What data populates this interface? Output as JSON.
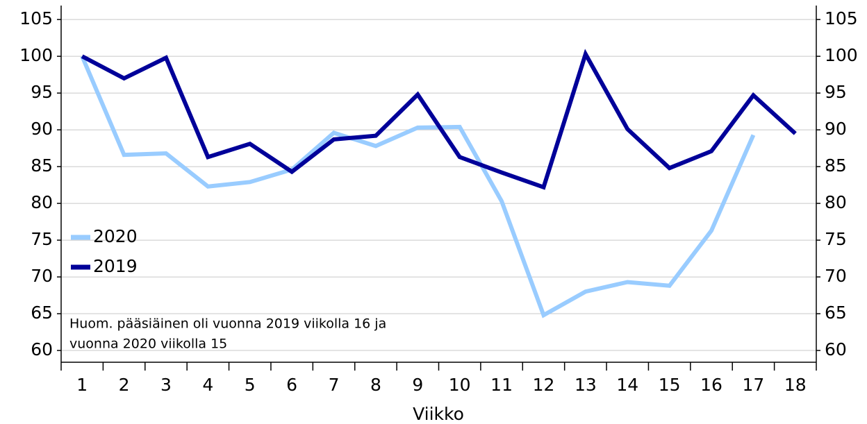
{
  "chart_data": {
    "type": "line",
    "x_label": "Viikko",
    "annotation": [
      "Huom. pääsiäinen oli vuonna 2019 viikolla 16 ja",
      "vuonna 2020 viikolla 15"
    ],
    "categories": [
      "1",
      "2",
      "3",
      "4",
      "5",
      "6",
      "7",
      "8",
      "9",
      "10",
      "11",
      "12",
      "13",
      "14",
      "15",
      "16",
      "17",
      "18"
    ],
    "series": [
      {
        "name": "2020",
        "color": "#99ccff",
        "values": [
          100,
          86.6,
          86.8,
          82.3,
          82.9,
          84.6,
          89.6,
          87.8,
          90.3,
          90.4,
          80.3,
          64.8,
          68.0,
          69.3,
          68.8,
          76.3,
          89.3,
          null
        ]
      },
      {
        "name": "2019",
        "color": "#000099",
        "values": [
          100,
          97,
          99.8,
          86.3,
          88.1,
          84.3,
          88.7,
          89.2,
          94.8,
          86.3,
          84.2,
          82.2,
          100.3,
          90.1,
          84.8,
          87.1,
          94.7,
          89.5
        ]
      }
    ],
    "ylim": [
      58.4,
      106.9
    ],
    "yticks": [
      60,
      65,
      70,
      75,
      80,
      85,
      90,
      95,
      100,
      105
    ],
    "grid": true,
    "legend": "left"
  }
}
